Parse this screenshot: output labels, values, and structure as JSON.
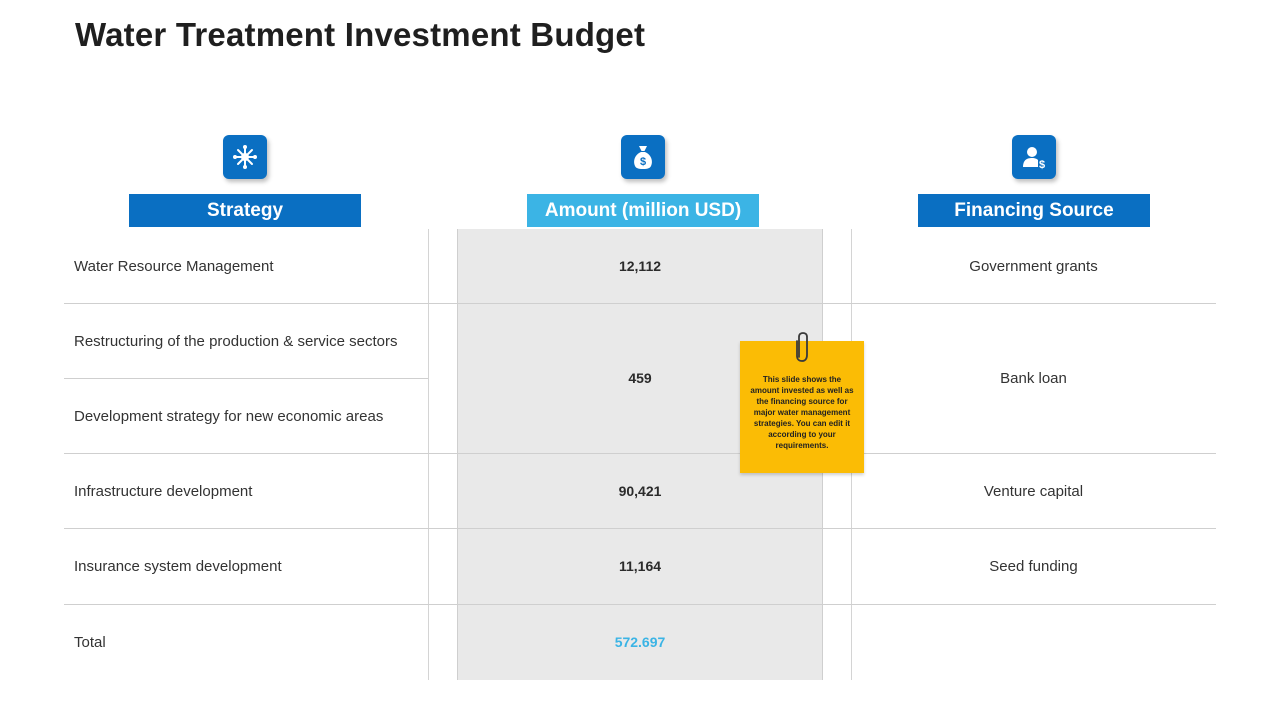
{
  "page": {
    "title": "Water Treatment Investment Budget"
  },
  "icons": {
    "strategy": "network-snowflake-icon",
    "amount": "money-bag-icon",
    "financing": "person-dollar-icon"
  },
  "headers": {
    "strategy": "Strategy",
    "amount": "Amount (million USD)",
    "financing": "Financing Source"
  },
  "rows": [
    {
      "strategy": "Water Resource Management",
      "amount": "12,112",
      "source": "Government grants"
    },
    {
      "strategy": "Restructuring of the production & service sectors",
      "amount": "459",
      "source": "Bank loan"
    },
    {
      "strategy": "Development strategy for new economic areas",
      "amount": "",
      "source": ""
    },
    {
      "strategy": "Infrastructure development",
      "amount": "90,421",
      "source": "Venture capital"
    },
    {
      "strategy": "Insurance system development",
      "amount": "11,164",
      "source": "Seed funding"
    }
  ],
  "total": {
    "label": "Total",
    "amount": "572.697"
  },
  "note": {
    "text": "This slide shows the amount invested as well as the financing source for major water management strategies. You can edit it according to your requirements."
  },
  "colors": {
    "primary_blue": "#0a6fc2",
    "light_blue": "#3bb4e5",
    "note_yellow": "#fbbc05",
    "column_gray": "#e9e9e9"
  }
}
